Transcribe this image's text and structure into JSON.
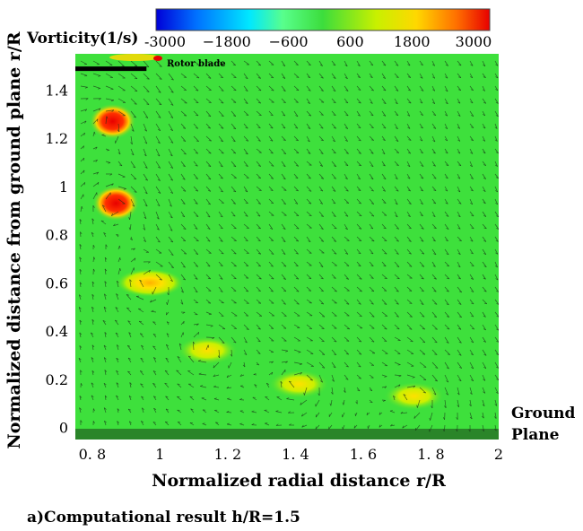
{
  "chart_data": {
    "type": "heatmap",
    "title": "",
    "xlabel": "Normalized radial distance r/R",
    "ylabel": "Normalized distance from ground plane r/R",
    "xlim": [
      0.75,
      2.0
    ],
    "ylim": [
      -0.05,
      1.55
    ],
    "x_ticks": [
      "0. 8",
      "1",
      "1. 2",
      "1. 4",
      "1. 6",
      "1. 8",
      "2"
    ],
    "x_tick_values": [
      0.8,
      1.0,
      1.2,
      1.4,
      1.6,
      1.8,
      2.0
    ],
    "y_ticks": [
      "0",
      "0.2",
      "0.4",
      "0.6",
      "0.8",
      "1",
      "1.2",
      "1.4"
    ],
    "y_tick_values": [
      0,
      0.2,
      0.4,
      0.6,
      0.8,
      1.0,
      1.2,
      1.4
    ],
    "colorbar": {
      "title": "Vorticity(1/s)",
      "tick_labels": [
        "-3000",
        "−1800",
        "−600",
        "600",
        "1800",
        "3000"
      ],
      "tick_values": [
        -3000,
        -1800,
        -600,
        600,
        1800,
        3000
      ],
      "range": [
        -3000,
        3000
      ],
      "colors": [
        "#0000d8",
        "#0070ff",
        "#00e8ff",
        "#58ff8c",
        "#3cdd3c",
        "#c8f000",
        "#ffd800",
        "#ff7000",
        "#e80000"
      ]
    },
    "background_color": "#3ee03c",
    "vortex_cores": [
      {
        "x": 0.86,
        "y": 1.27,
        "vorticity": 3000
      },
      {
        "x": 0.87,
        "y": 0.93,
        "vorticity": 3000
      },
      {
        "x": 0.97,
        "y": 0.6,
        "vorticity": 2200
      },
      {
        "x": 1.14,
        "y": 0.32,
        "vorticity": 1600
      },
      {
        "x": 1.41,
        "y": 0.18,
        "vorticity": 1400
      },
      {
        "x": 1.75,
        "y": 0.13,
        "vorticity": 1500
      }
    ],
    "rotor_blade": {
      "x_start": 0.75,
      "x_end": 0.96,
      "y": 1.49
    },
    "annotations": {
      "rotor_blade": "Rotor blade",
      "ground_line1": "Ground",
      "ground_line2": "Plane"
    }
  },
  "caption": "a)Computational result h/R=1.5"
}
